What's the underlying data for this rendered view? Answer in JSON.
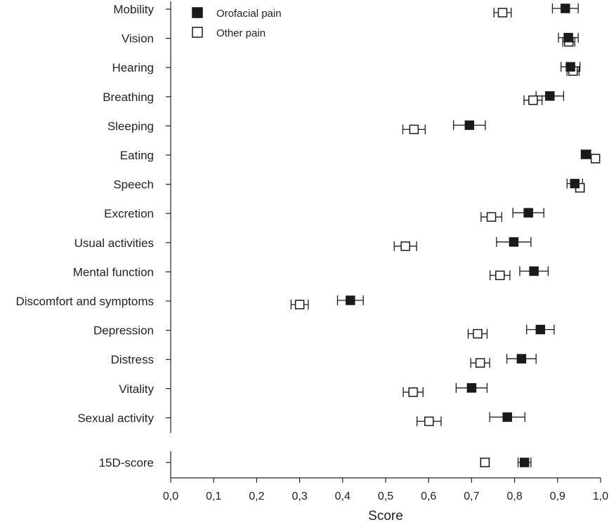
{
  "chart_data": {
    "type": "scatter",
    "subtype": "dot-plot-with-error-bars",
    "xlabel": "Score",
    "xlim": [
      0,
      1
    ],
    "xticks": [
      "0,0",
      "0,1",
      "0,2",
      "0,3",
      "0,4",
      "0,5",
      "0,6",
      "0,7",
      "0,8",
      "0,9",
      "1,0"
    ],
    "grid": false,
    "legend_position": "top-left",
    "series": [
      {
        "name": "Orofacial pain",
        "marker": "filled-square",
        "color": "#1a1a1a"
      },
      {
        "name": "Other pain",
        "marker": "open-square",
        "color": "#1a1a1a"
      }
    ],
    "categories": [
      {
        "label": "Mobility",
        "orofacial": [
          0.918,
          0.888,
          0.948
        ],
        "other": [
          0.772,
          0.752,
          0.792
        ]
      },
      {
        "label": "Vision",
        "orofacial": [
          0.925,
          0.902,
          0.948
        ],
        "other": [
          0.926,
          0.912,
          0.94
        ]
      },
      {
        "label": "Hearing",
        "orofacial": [
          0.93,
          0.908,
          0.952
        ],
        "other": [
          0.936,
          0.922,
          0.95
        ]
      },
      {
        "label": "Breathing",
        "orofacial": [
          0.882,
          0.85,
          0.914
        ],
        "other": [
          0.843,
          0.822,
          0.864
        ]
      },
      {
        "label": "Sleeping",
        "orofacial": [
          0.695,
          0.658,
          0.732
        ],
        "other": [
          0.566,
          0.54,
          0.592
        ]
      },
      {
        "label": "Eating",
        "orofacial": [
          0.966,
          0.955,
          0.977
        ],
        "other": [
          0.988,
          0.984,
          0.992
        ]
      },
      {
        "label": "Speech",
        "orofacial": [
          0.94,
          0.922,
          0.958
        ],
        "other": [
          0.952,
          0.942,
          0.962
        ]
      },
      {
        "label": "Excretion",
        "orofacial": [
          0.832,
          0.796,
          0.868
        ],
        "other": [
          0.746,
          0.722,
          0.77
        ]
      },
      {
        "label": "Usual activities",
        "orofacial": [
          0.798,
          0.758,
          0.838
        ],
        "other": [
          0.546,
          0.52,
          0.572
        ]
      },
      {
        "label": "Mental function",
        "orofacial": [
          0.845,
          0.812,
          0.878
        ],
        "other": [
          0.766,
          0.743,
          0.789
        ]
      },
      {
        "label": "Discomfort and symptoms",
        "orofacial": [
          0.418,
          0.388,
          0.448
        ],
        "other": [
          0.3,
          0.28,
          0.32
        ]
      },
      {
        "label": "Depression",
        "orofacial": [
          0.86,
          0.828,
          0.892
        ],
        "other": [
          0.714,
          0.692,
          0.736
        ]
      },
      {
        "label": "Distress",
        "orofacial": [
          0.816,
          0.782,
          0.85
        ],
        "other": [
          0.72,
          0.698,
          0.742
        ]
      },
      {
        "label": "Vitality",
        "orofacial": [
          0.7,
          0.664,
          0.736
        ],
        "other": [
          0.564,
          0.541,
          0.587
        ]
      },
      {
        "label": "Sexual activity",
        "orofacial": [
          0.783,
          0.742,
          0.824
        ],
        "other": [
          0.601,
          0.573,
          0.629
        ]
      }
    ],
    "summary": {
      "label": "15D-score",
      "orofacial": [
        0.823,
        0.808,
        0.838
      ],
      "other": [
        0.731,
        0.721,
        0.741
      ]
    }
  }
}
